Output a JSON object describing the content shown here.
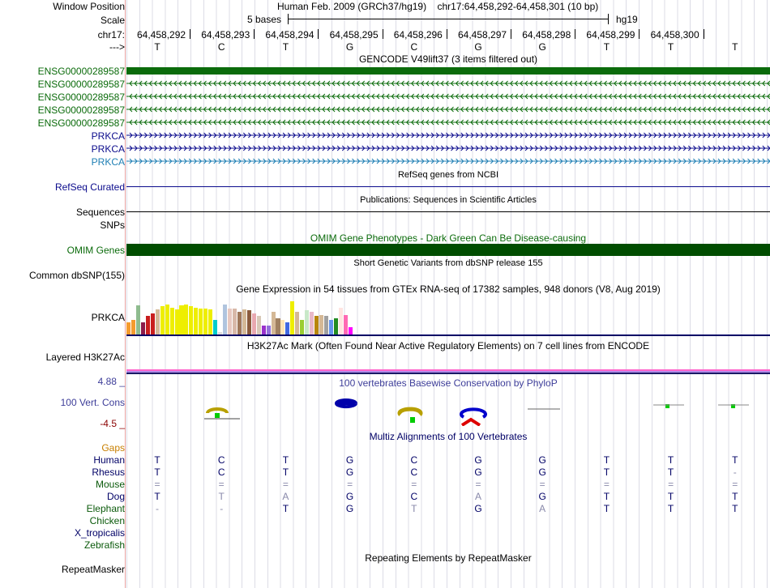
{
  "labels": {
    "window_position": "Window Position",
    "scale": "Scale",
    "chrom": "chr17:",
    "strand": "--->",
    "gencode_tracks": [
      "ENSG00000289587",
      "ENSG00000289587",
      "ENSG00000289587",
      "ENSG00000289587",
      "ENSG00000289587"
    ],
    "prkca_tracks": [
      "PRKCA",
      "PRKCA",
      "PRKCA"
    ],
    "refseq": "RefSeq Curated",
    "sequences": "Sequences",
    "snps": "SNPs",
    "omim": "OMIM Genes",
    "dbsnp": "Common dbSNP(155)",
    "gtex": "PRKCA",
    "h3k27ac": "Layered H3K27Ac",
    "cons_max": "4.88 _",
    "cons_label": "100 Vert. Cons",
    "cons_min": "-4.5 _",
    "gaps": "Gaps",
    "species": [
      "Human",
      "Rhesus",
      "Mouse",
      "Dog",
      "Elephant",
      "Chicken",
      "X_tropicalis",
      "Zebrafish"
    ],
    "repeatmasker": "RepeatMasker"
  },
  "header": {
    "assembly": "Human Feb. 2009 (GRCh37/hg19)",
    "position": "chr17:64,458,292-64,458,301 (10 bp)",
    "scale_text": "5 bases",
    "scale_db": "hg19",
    "coordinates": [
      "64,458,292",
      "64,458,293",
      "64,458,294",
      "64,458,295",
      "64,458,296",
      "64,458,297",
      "64,458,298",
      "64,458,299",
      "64,458,300"
    ],
    "bases": [
      "T",
      "C",
      "T",
      "G",
      "C",
      "G",
      "G",
      "T",
      "T",
      "T"
    ]
  },
  "titles": {
    "gencode": "GENCODE V49lift37 (3 items filtered out)",
    "refseq": "RefSeq genes from NCBI",
    "publications": "Publications: Sequences in Scientific Articles",
    "omim": "OMIM Gene Phenotypes - Dark Green Can Be Disease-causing",
    "dbsnp": "Short Genetic Variants from dbSNP release 155",
    "gtex": "Gene Expression in 54 tissues from GTEx RNA-seq of 17382 samples, 948 donors (V8, Aug 2019)",
    "h3k27ac": "H3K27Ac Mark (Often Found Near Active Regulatory Elements) on 7 cell lines from ENCODE",
    "phylop": "100 vertebrates Basewise Conservation by PhyloP",
    "multiz": "Multiz Alignments of 100 Vertebrates",
    "repeatmasker": "Repeating Elements by RepeatMasker"
  },
  "alignment": {
    "Human": [
      "T",
      "C",
      "T",
      "G",
      "C",
      "G",
      "G",
      "T",
      "T",
      "T"
    ],
    "Rhesus": [
      "T",
      "C",
      "T",
      "G",
      "C",
      "G",
      "G",
      "T",
      "T",
      "-"
    ],
    "Mouse": [
      "=",
      "=",
      "=",
      "=",
      "=",
      "=",
      "=",
      "=",
      "=",
      "="
    ],
    "Dog": [
      "T",
      "T",
      "A",
      "G",
      "C",
      "A",
      "G",
      "T",
      "T",
      "T"
    ],
    "Elephant": [
      "-",
      "-",
      "T",
      "G",
      "T",
      "G",
      "A",
      "T",
      "T",
      "T"
    ]
  },
  "colors": {
    "gencode_green": "#0b6b0b",
    "prkca_navy": "#0b0b8c",
    "prkca_teal": "#1f7fb4",
    "omim_green": "#004d00",
    "species_navy": "#000066",
    "species_green": "#0b5a0b",
    "gaps_orange": "#c87f00",
    "cons_blue": "#3d3d99",
    "cons_red": "#8b0000"
  },
  "gtex_bars": [
    {
      "color": "#f59b2e",
      "v": 0.3
    },
    {
      "color": "#f59b2e",
      "v": 0.35
    },
    {
      "color": "#8fbc8f",
      "v": 0.7
    },
    {
      "color": "#8b1a4a",
      "v": 0.3
    },
    {
      "color": "#c81e1e",
      "v": 0.45
    },
    {
      "color": "#c81e1e",
      "v": 0.5
    },
    {
      "color": "#d4b896",
      "v": 0.6
    },
    {
      "color": "#eeee00",
      "v": 0.68
    },
    {
      "color": "#eeee00",
      "v": 0.72
    },
    {
      "color": "#eeee00",
      "v": 0.65
    },
    {
      "color": "#eeee00",
      "v": 0.6
    },
    {
      "color": "#eeee00",
      "v": 0.7
    },
    {
      "color": "#eeee00",
      "v": 0.72
    },
    {
      "color": "#eeee00",
      "v": 0.68
    },
    {
      "color": "#eeee00",
      "v": 0.65
    },
    {
      "color": "#eeee00",
      "v": 0.62
    },
    {
      "color": "#eeee00",
      "v": 0.62
    },
    {
      "color": "#eeee00",
      "v": 0.6
    },
    {
      "color": "#00cccc",
      "v": 0.35
    },
    {
      "color": "#dddddd",
      "v": 0.05
    },
    {
      "color": "#b0c4de",
      "v": 0.72
    },
    {
      "color": "#e8c8c0",
      "v": 0.62
    },
    {
      "color": "#d8b8a8",
      "v": 0.62
    },
    {
      "color": "#a0785a",
      "v": 0.55
    },
    {
      "color": "#d4b896",
      "v": 0.6
    },
    {
      "color": "#8b5a3c",
      "v": 0.58
    },
    {
      "color": "#e8a8b0",
      "v": 0.5
    },
    {
      "color": "#d8c8b8",
      "v": 0.45
    },
    {
      "color": "#9932cc",
      "v": 0.22
    },
    {
      "color": "#9370db",
      "v": 0.22
    },
    {
      "color": "#d4b896",
      "v": 0.55
    },
    {
      "color": "#a08060",
      "v": 0.4
    },
    {
      "color": "#ffe4b5",
      "v": 0.35
    },
    {
      "color": "#4169e1",
      "v": 0.3
    },
    {
      "color": "#eeee00",
      "v": 0.8
    },
    {
      "color": "#d4b896",
      "v": 0.55
    },
    {
      "color": "#9acd32",
      "v": 0.35
    },
    {
      "color": "#c8e8c8",
      "v": 0.58
    },
    {
      "color": "#e8b8c8",
      "v": 0.55
    },
    {
      "color": "#b8860b",
      "v": 0.45
    },
    {
      "color": "#d4b896",
      "v": 0.48
    },
    {
      "color": "#a0a0a0",
      "v": 0.45
    },
    {
      "color": "#6495ed",
      "v": 0.35
    },
    {
      "color": "#228b22",
      "v": 0.4
    },
    {
      "color": "#ffe4e1",
      "v": 0.65
    },
    {
      "color": "#ff69b4",
      "v": 0.48
    },
    {
      "color": "#ff00ff",
      "v": 0.18
    }
  ]
}
